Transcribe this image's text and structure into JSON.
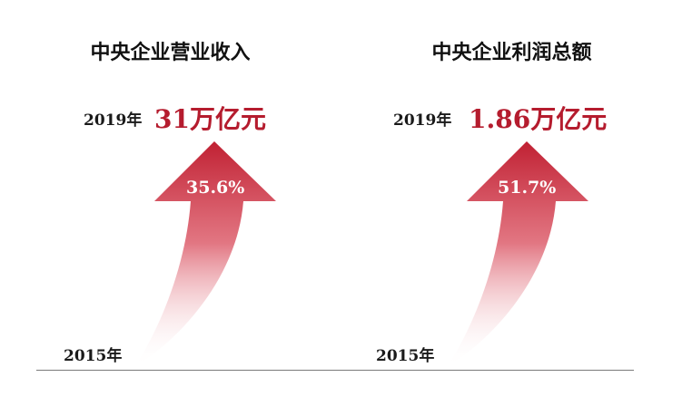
{
  "colors": {
    "accent": "#b51c2e",
    "arrow_top": "#c02032",
    "arrow_bottom": "#ffffff"
  },
  "left": {
    "title": "中央企业营业收入",
    "year_start": "2015年",
    "year_end": "2019年",
    "value": "31万亿元",
    "growth": "35.6%"
  },
  "right": {
    "title": "中央企业利润总额",
    "year_start": "2015年",
    "year_end": "2019年",
    "value": "1.86万亿元",
    "growth": "51.7%"
  }
}
